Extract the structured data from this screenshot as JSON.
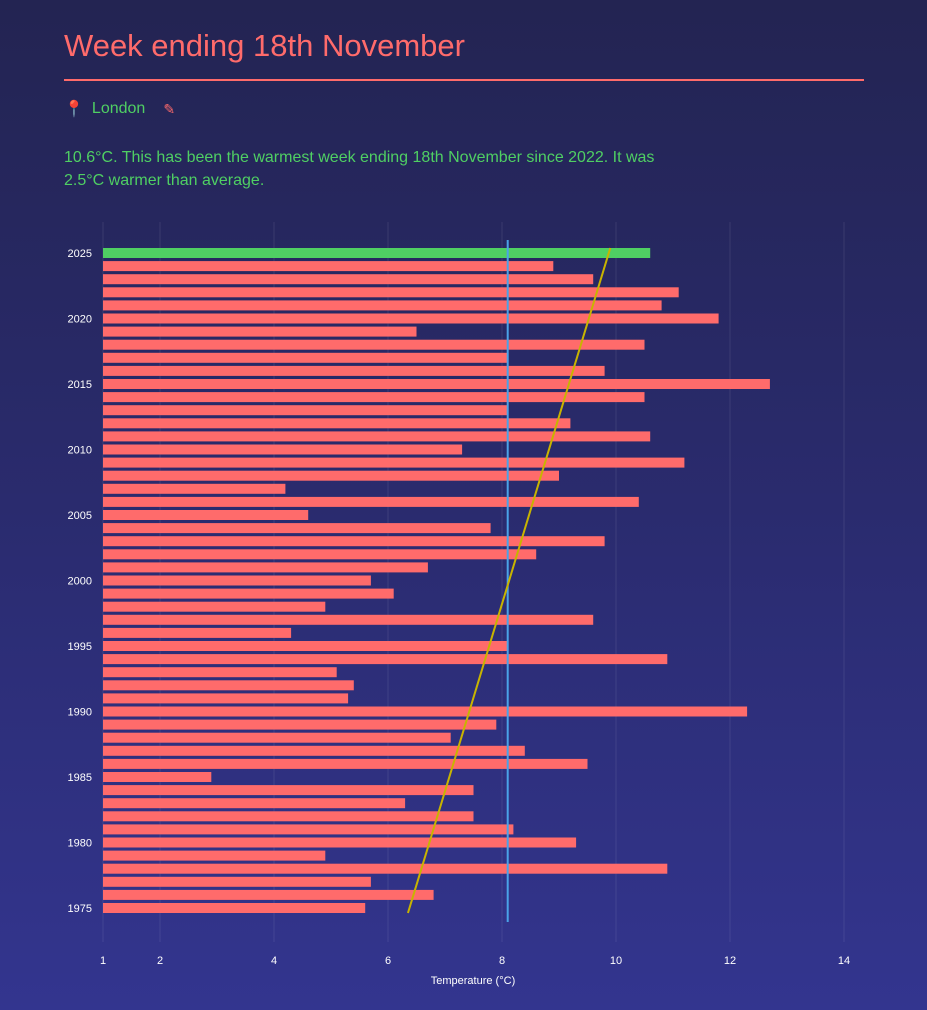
{
  "header": {
    "title": "Week ending 18th November",
    "location": "London",
    "location_icon": "pin-icon",
    "edit_icon": "pencil-icon",
    "summary": "10.6°C. This has been the warmest week ending 18th November since 2022. It was 2.5°C warmer than average."
  },
  "colors": {
    "title": "#ff6b6b",
    "current_bar": "#4fcf63",
    "bars": "#ff6b6b",
    "average_line": "#4aa3e8",
    "trend_line": "#c8b400"
  },
  "chart_data": {
    "type": "bar",
    "orientation": "horizontal",
    "xlabel": "Temperature (°C)",
    "ylabel": "",
    "xlim": [
      1,
      14.1
    ],
    "x_ticks": [
      1,
      2,
      4,
      6,
      8,
      10,
      12,
      14
    ],
    "y_tick_labels": [
      "2025",
      "2020",
      "2015",
      "2010",
      "2005",
      "2000",
      "1995",
      "1990",
      "1985",
      "1980",
      "1975"
    ],
    "years": [
      2025,
      2024,
      2023,
      2022,
      2021,
      2020,
      2019,
      2018,
      2017,
      2016,
      2015,
      2014,
      2013,
      2012,
      2011,
      2010,
      2009,
      2008,
      2007,
      2006,
      2005,
      2004,
      2003,
      2002,
      2001,
      2000,
      1999,
      1998,
      1997,
      1996,
      1995,
      1994,
      1993,
      1992,
      1991,
      1990,
      1989,
      1988,
      1987,
      1986,
      1985,
      1984,
      1983,
      1982,
      1981,
      1980,
      1979,
      1978,
      1977,
      1976,
      1975
    ],
    "values": [
      10.6,
      8.9,
      9.6,
      11.1,
      10.8,
      11.8,
      6.5,
      10.5,
      8.1,
      9.8,
      12.7,
      10.5,
      8.1,
      9.2,
      10.6,
      7.3,
      11.2,
      9.0,
      4.2,
      10.4,
      4.6,
      7.8,
      9.8,
      8.6,
      6.7,
      5.7,
      6.1,
      4.9,
      9.6,
      4.3,
      8.1,
      10.9,
      5.1,
      5.4,
      5.3,
      12.3,
      7.9,
      7.1,
      8.4,
      9.5,
      2.9,
      7.5,
      6.3,
      7.5,
      8.2,
      9.3,
      4.9,
      10.9,
      5.7,
      6.8,
      5.6
    ],
    "highlight_year": 2025,
    "average": 8.1,
    "trend": {
      "start_year": 1975,
      "start_value": 6.35,
      "end_year": 2025,
      "end_value": 9.9
    },
    "grid": true
  }
}
